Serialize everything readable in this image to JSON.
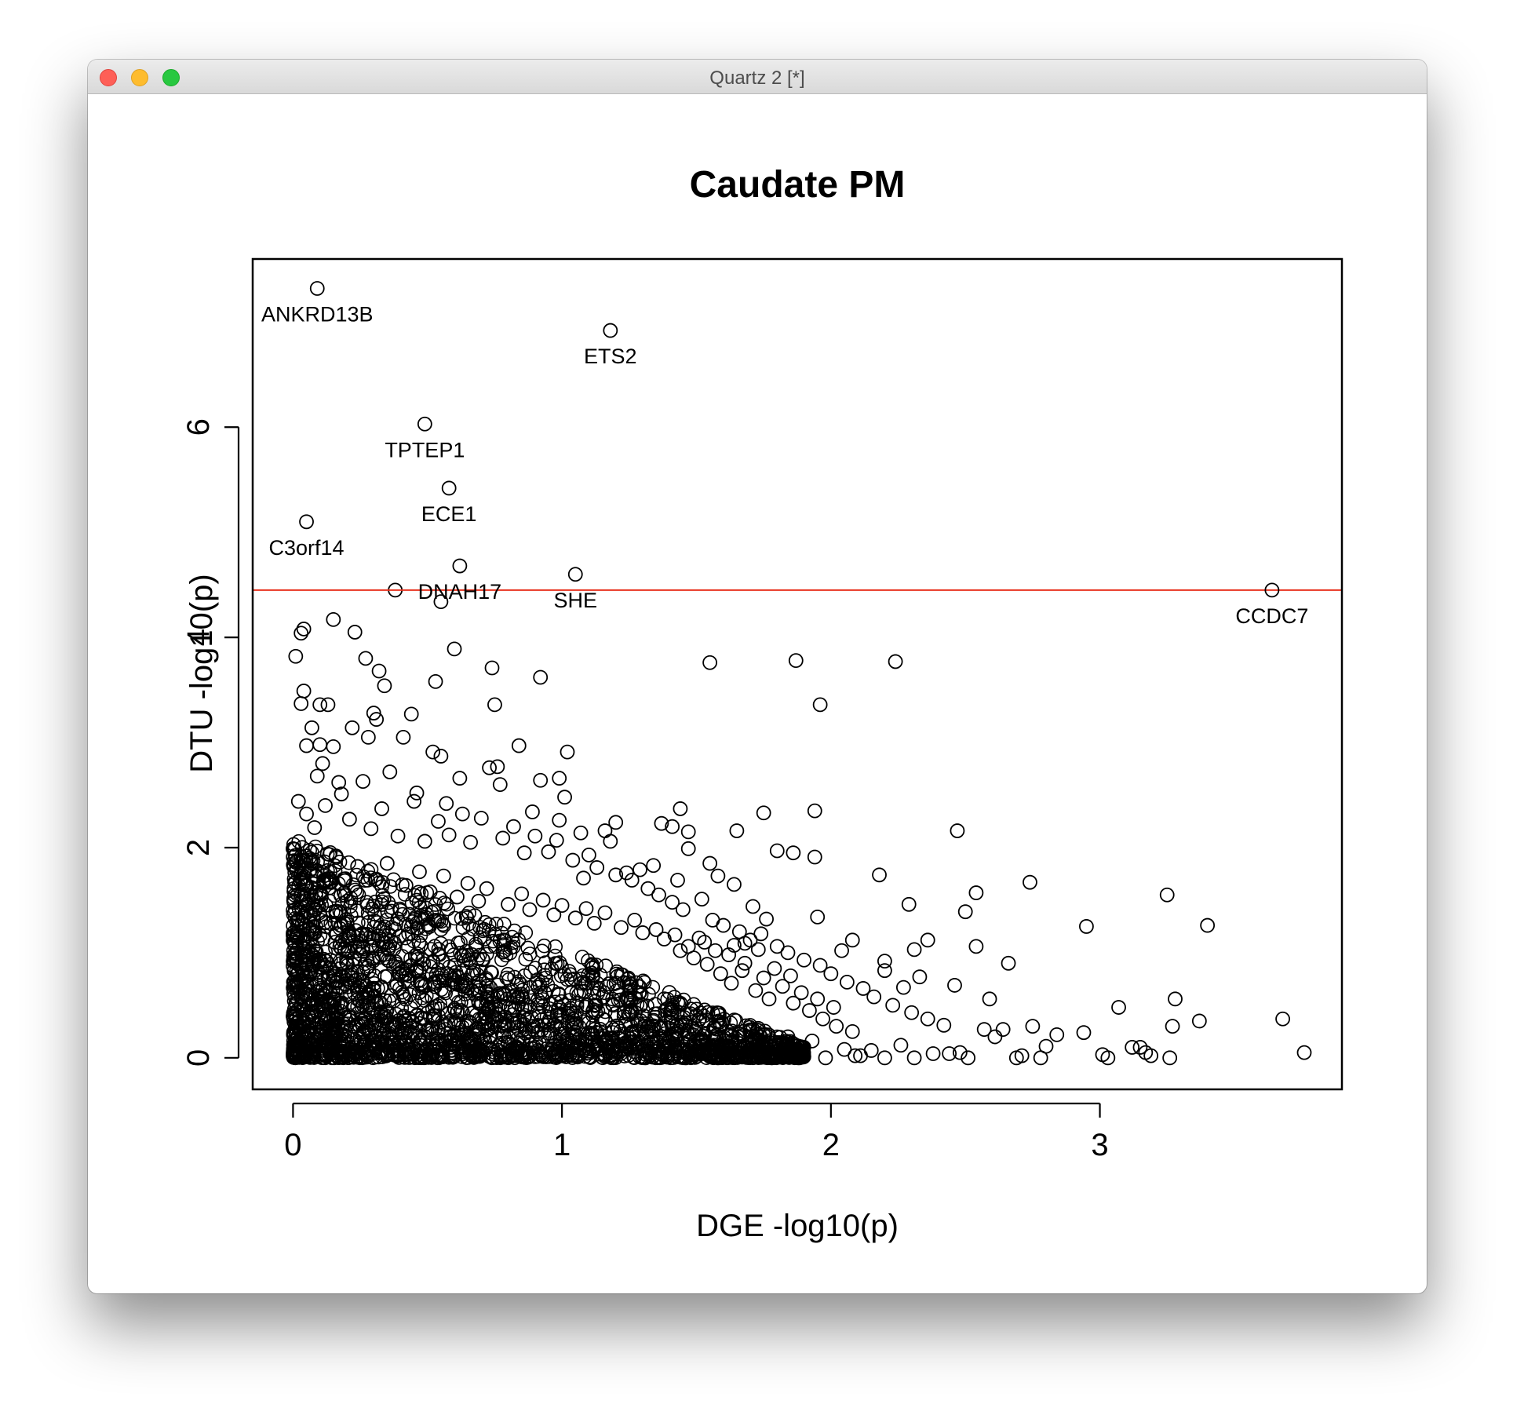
{
  "window": {
    "title": "Quartz 2 [*]"
  },
  "chart_data": {
    "type": "scatter",
    "title": "Caudate PM",
    "xlabel": "DGE -log10(p)",
    "ylabel": "DTU -log10(p)",
    "xlim": [
      -0.15,
      3.9
    ],
    "ylim": [
      -0.3,
      7.6
    ],
    "xticks": [
      0,
      1,
      2,
      3
    ],
    "yticks": [
      0,
      2,
      4,
      6
    ],
    "threshold": {
      "y": 4.45,
      "color": "#e8331f"
    },
    "labeled_points": [
      {
        "label": "ANKRD13B",
        "x": 0.09,
        "y": 7.32
      },
      {
        "label": "ETS2",
        "x": 1.18,
        "y": 6.92
      },
      {
        "label": "TPTEP1",
        "x": 0.49,
        "y": 6.03
      },
      {
        "label": "ECE1",
        "x": 0.58,
        "y": 5.42
      },
      {
        "label": "C3orf14",
        "x": 0.05,
        "y": 5.1
      },
      {
        "label": "DNAH17",
        "x": 0.62,
        "y": 4.68
      },
      {
        "label": "SHE",
        "x": 1.05,
        "y": 4.6
      },
      {
        "label": "CCDC7",
        "x": 3.64,
        "y": 4.45
      }
    ],
    "points": [
      [
        0.38,
        4.45
      ],
      [
        0.55,
        4.34
      ],
      [
        0.15,
        4.17
      ],
      [
        0.04,
        4.08
      ],
      [
        0.03,
        4.04
      ],
      [
        0.23,
        4.05
      ],
      [
        0.6,
        3.89
      ],
      [
        0.01,
        3.82
      ],
      [
        0.27,
        3.8
      ],
      [
        0.32,
        3.68
      ],
      [
        0.74,
        3.71
      ],
      [
        1.55,
        3.76
      ],
      [
        1.87,
        3.78
      ],
      [
        2.24,
        3.77
      ],
      [
        0.92,
        3.62
      ],
      [
        0.53,
        3.58
      ],
      [
        0.34,
        3.54
      ],
      [
        0.04,
        3.49
      ],
      [
        0.03,
        3.37
      ],
      [
        0.1,
        3.36
      ],
      [
        0.13,
        3.36
      ],
      [
        0.75,
        3.36
      ],
      [
        1.96,
        3.36
      ],
      [
        0.3,
        3.28
      ],
      [
        0.44,
        3.27
      ],
      [
        0.31,
        3.22
      ],
      [
        0.07,
        3.14
      ],
      [
        0.22,
        3.14
      ],
      [
        0.28,
        3.05
      ],
      [
        0.41,
        3.05
      ],
      [
        0.1,
        2.98
      ],
      [
        0.05,
        2.97
      ],
      [
        0.15,
        2.96
      ],
      [
        0.84,
        2.97
      ],
      [
        1.02,
        2.91
      ],
      [
        0.52,
        2.91
      ],
      [
        0.55,
        2.87
      ],
      [
        0.11,
        2.8
      ],
      [
        0.76,
        2.77
      ],
      [
        0.73,
        2.76
      ],
      [
        0.36,
        2.72
      ],
      [
        0.09,
        2.68
      ],
      [
        0.62,
        2.66
      ],
      [
        0.99,
        2.66
      ],
      [
        0.92,
        2.64
      ],
      [
        0.77,
        2.6
      ],
      [
        0.17,
        2.62
      ],
      [
        1.01,
        2.48
      ],
      [
        0.46,
        2.52
      ],
      [
        0.57,
        2.42
      ],
      [
        1.44,
        2.37
      ],
      [
        0.89,
        2.34
      ],
      [
        1.75,
        2.33
      ],
      [
        1.94,
        2.35
      ],
      [
        0.99,
        2.26
      ],
      [
        1.2,
        2.24
      ],
      [
        1.37,
        2.23
      ],
      [
        1.41,
        2.2
      ],
      [
        2.47,
        2.16
      ],
      [
        1.16,
        2.16
      ],
      [
        1.07,
        2.14
      ],
      [
        1.65,
        2.16
      ],
      [
        1.47,
        2.15
      ],
      [
        1.18,
        2.06
      ],
      [
        1.47,
        1.99
      ],
      [
        1.8,
        1.97
      ],
      [
        1.86,
        1.95
      ],
      [
        1.94,
        1.91
      ],
      [
        1.55,
        1.85
      ],
      [
        1.34,
        1.83
      ],
      [
        1.29,
        1.79
      ],
      [
        1.24,
        1.76
      ],
      [
        1.58,
        1.73
      ],
      [
        2.18,
        1.74
      ],
      [
        1.43,
        1.69
      ],
      [
        1.64,
        1.65
      ],
      [
        2.74,
        1.67
      ],
      [
        1.08,
        1.71
      ],
      [
        2.54,
        1.57
      ],
      [
        3.25,
        1.55
      ],
      [
        1.52,
        1.51
      ],
      [
        1.71,
        1.44
      ],
      [
        2.29,
        1.46
      ],
      [
        1.76,
        1.32
      ],
      [
        1.95,
        1.34
      ],
      [
        2.5,
        1.39
      ],
      [
        2.95,
        1.25
      ],
      [
        3.4,
        1.26
      ],
      [
        1.74,
        1.18
      ],
      [
        2.08,
        1.12
      ],
      [
        2.36,
        1.12
      ],
      [
        2.04,
        1.02
      ],
      [
        2.31,
        1.03
      ],
      [
        2.54,
        1.06
      ],
      [
        1.68,
        1.09
      ],
      [
        2.66,
        0.9
      ],
      [
        2.2,
        0.92
      ],
      [
        2.33,
        0.77
      ],
      [
        2.46,
        0.69
      ],
      [
        2.59,
        0.56
      ],
      [
        2.2,
        0.83
      ],
      [
        2.27,
        0.67
      ],
      [
        3.28,
        0.56
      ],
      [
        3.07,
        0.48
      ],
      [
        2.75,
        0.3
      ],
      [
        2.84,
        0.22
      ],
      [
        2.94,
        0.24
      ],
      [
        3.37,
        0.35
      ],
      [
        3.68,
        0.37
      ],
      [
        3.27,
        0.3
      ],
      [
        3.76,
        0.05
      ],
      [
        3.01,
        0.03
      ],
      [
        3.03,
        0.0
      ],
      [
        3.12,
        0.1
      ],
      [
        3.15,
        0.1
      ],
      [
        3.17,
        0.05
      ],
      [
        3.19,
        0.02
      ],
      [
        3.26,
        0.0
      ],
      [
        2.69,
        0.0
      ],
      [
        2.71,
        0.02
      ],
      [
        2.78,
        0.0
      ],
      [
        2.8,
        0.11
      ],
      [
        2.61,
        0.2
      ],
      [
        2.64,
        0.27
      ],
      [
        2.57,
        0.27
      ],
      [
        2.48,
        0.05
      ],
      [
        2.51,
        0.0
      ],
      [
        2.38,
        0.04
      ],
      [
        2.44,
        0.04
      ],
      [
        2.31,
        0.0
      ],
      [
        2.26,
        0.12
      ],
      [
        2.2,
        0.0
      ],
      [
        2.15,
        0.07
      ],
      [
        2.11,
        0.02
      ],
      [
        2.09,
        0.02
      ],
      [
        2.05,
        0.08
      ],
      [
        1.98,
        0.0
      ],
      [
        1.93,
        0.16
      ],
      [
        1.88,
        0.0
      ],
      [
        1.84,
        0.2
      ],
      [
        1.78,
        0.0
      ],
      [
        1.73,
        0.28
      ],
      [
        1.69,
        0.1
      ],
      [
        1.61,
        0.03
      ],
      [
        1.58,
        0.0
      ],
      [
        1.52,
        0.15
      ],
      [
        1.5,
        0.4
      ],
      [
        1.46,
        0.0
      ],
      [
        1.42,
        0.18
      ],
      [
        1.39,
        0.04
      ],
      [
        1.34,
        0.27
      ],
      [
        1.31,
        0.0
      ],
      [
        0.02,
        2.44
      ],
      [
        0.05,
        2.32
      ],
      [
        0.08,
        2.19
      ],
      [
        0.12,
        2.4
      ],
      [
        0.18,
        2.51
      ],
      [
        0.21,
        2.27
      ],
      [
        0.26,
        2.63
      ],
      [
        0.29,
        2.18
      ],
      [
        0.33,
        2.37
      ],
      [
        0.39,
        2.11
      ],
      [
        0.45,
        2.44
      ],
      [
        0.49,
        2.06
      ],
      [
        0.54,
        2.25
      ],
      [
        0.58,
        2.12
      ],
      [
        0.63,
        2.32
      ],
      [
        0.66,
        2.05
      ],
      [
        0.7,
        2.28
      ],
      [
        0.78,
        2.09
      ],
      [
        0.82,
        2.2
      ],
      [
        0.86,
        1.95
      ],
      [
        0.9,
        2.11
      ],
      [
        0.95,
        1.96
      ],
      [
        0.98,
        2.07
      ],
      [
        1.04,
        1.88
      ],
      [
        1.1,
        1.93
      ],
      [
        1.13,
        1.81
      ],
      [
        1.2,
        1.74
      ],
      [
        1.26,
        1.69
      ],
      [
        1.32,
        1.61
      ],
      [
        1.36,
        1.55
      ],
      [
        1.41,
        1.48
      ],
      [
        1.45,
        1.41
      ],
      [
        1.56,
        1.31
      ],
      [
        1.6,
        1.26
      ],
      [
        1.66,
        1.2
      ],
      [
        1.7,
        1.12
      ],
      [
        1.8,
        1.06
      ],
      [
        1.84,
        1.0
      ],
      [
        1.9,
        0.93
      ],
      [
        1.96,
        0.88
      ],
      [
        2.0,
        0.8
      ],
      [
        2.06,
        0.72
      ],
      [
        2.12,
        0.66
      ],
      [
        2.16,
        0.58
      ],
      [
        2.23,
        0.5
      ],
      [
        2.3,
        0.43
      ],
      [
        2.36,
        0.37
      ],
      [
        2.42,
        0.31
      ],
      [
        1.63,
        0.71
      ],
      [
        1.72,
        0.64
      ],
      [
        1.77,
        0.56
      ],
      [
        1.86,
        0.52
      ],
      [
        1.92,
        0.45
      ],
      [
        1.97,
        0.37
      ],
      [
        2.02,
        0.3
      ],
      [
        2.08,
        0.25
      ],
      [
        1.54,
        0.89
      ],
      [
        1.59,
        0.8
      ],
      [
        1.67,
        0.83
      ],
      [
        1.75,
        0.76
      ],
      [
        1.82,
        0.68
      ],
      [
        1.89,
        0.62
      ],
      [
        1.95,
        0.56
      ],
      [
        2.01,
        0.48
      ],
      [
        1.44,
        1.02
      ],
      [
        1.49,
        0.95
      ],
      [
        1.53,
        1.1
      ],
      [
        1.62,
        0.98
      ],
      [
        1.68,
        0.9
      ],
      [
        1.73,
        1.03
      ],
      [
        1.79,
        0.85
      ],
      [
        1.85,
        0.78
      ],
      [
        0.0,
        1.99
      ],
      [
        0.01,
        1.86
      ],
      [
        0.03,
        1.75
      ],
      [
        0.06,
        1.9
      ],
      [
        0.07,
        1.62
      ],
      [
        0.09,
        1.78
      ],
      [
        0.14,
        1.68
      ],
      [
        0.16,
        1.92
      ],
      [
        0.19,
        1.57
      ],
      [
        0.24,
        1.82
      ],
      [
        0.31,
        1.7
      ],
      [
        0.35,
        1.85
      ],
      [
        0.42,
        1.64
      ],
      [
        0.47,
        1.77
      ],
      [
        0.51,
        1.58
      ],
      [
        0.56,
        1.73
      ],
      [
        0.61,
        1.53
      ],
      [
        0.65,
        1.66
      ],
      [
        0.69,
        1.49
      ],
      [
        0.72,
        1.61
      ],
      [
        0.8,
        1.46
      ],
      [
        0.85,
        1.56
      ],
      [
        0.88,
        1.41
      ],
      [
        0.93,
        1.5
      ],
      [
        0.97,
        1.36
      ],
      [
        1.0,
        1.45
      ],
      [
        1.05,
        1.33
      ],
      [
        1.09,
        1.42
      ],
      [
        1.12,
        1.28
      ],
      [
        1.16,
        1.38
      ],
      [
        1.22,
        1.24
      ],
      [
        1.27,
        1.31
      ],
      [
        1.3,
        1.19
      ],
      [
        1.35,
        1.22
      ],
      [
        1.38,
        1.13
      ],
      [
        1.42,
        1.17
      ],
      [
        1.47,
        1.06
      ],
      [
        1.51,
        1.14
      ],
      [
        1.57,
        1.02
      ],
      [
        1.64,
        1.07
      ]
    ]
  }
}
